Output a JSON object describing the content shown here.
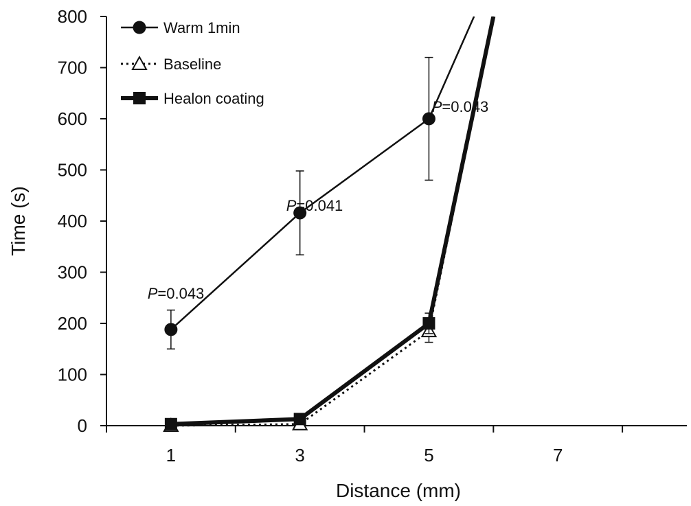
{
  "chart_data": {
    "type": "line",
    "title": "",
    "xlabel": "Distance (mm)",
    "ylabel": "Time (s)",
    "xlim": [
      0,
      9
    ],
    "ylim": [
      0,
      800
    ],
    "xticks": [
      0,
      2,
      4,
      6,
      8
    ],
    "xtick_labels": [
      1,
      3,
      5,
      7
    ],
    "xtick_label_positions": [
      1,
      3,
      5,
      7
    ],
    "yticks": [
      0,
      100,
      200,
      300,
      400,
      500,
      600,
      700,
      800
    ],
    "grid": false,
    "legend_position": "top-left",
    "series": [
      {
        "name": "Warm 1min",
        "marker": "circle-filled",
        "line": "solid-thin",
        "color": "#111111",
        "x": [
          1,
          3,
          5,
          5.7
        ],
        "values": [
          188,
          416,
          600,
          800
        ],
        "error": [
          38,
          82,
          120,
          null
        ]
      },
      {
        "name": "Baseline",
        "marker": "triangle-open",
        "line": "dotted",
        "color": "#111111",
        "x": [
          1,
          3,
          5,
          6
        ],
        "values": [
          0,
          3,
          185,
          800
        ],
        "error": [
          null,
          null,
          22,
          null
        ]
      },
      {
        "name": "Healon coating",
        "marker": "square-filled",
        "line": "solid-thick",
        "color": "#111111",
        "x": [
          1,
          3,
          5,
          6
        ],
        "values": [
          3,
          13,
          200,
          800
        ],
        "error": [
          null,
          null,
          20,
          null
        ]
      }
    ],
    "annotations": [
      {
        "prefix": "P",
        "text": "=0.043",
        "x": 1,
        "y": 188
      },
      {
        "prefix": "P",
        "text": "=0.041",
        "x": 3,
        "y": 416
      },
      {
        "prefix": "P",
        "text": "=0.043",
        "x": 5,
        "y": 600
      }
    ]
  }
}
